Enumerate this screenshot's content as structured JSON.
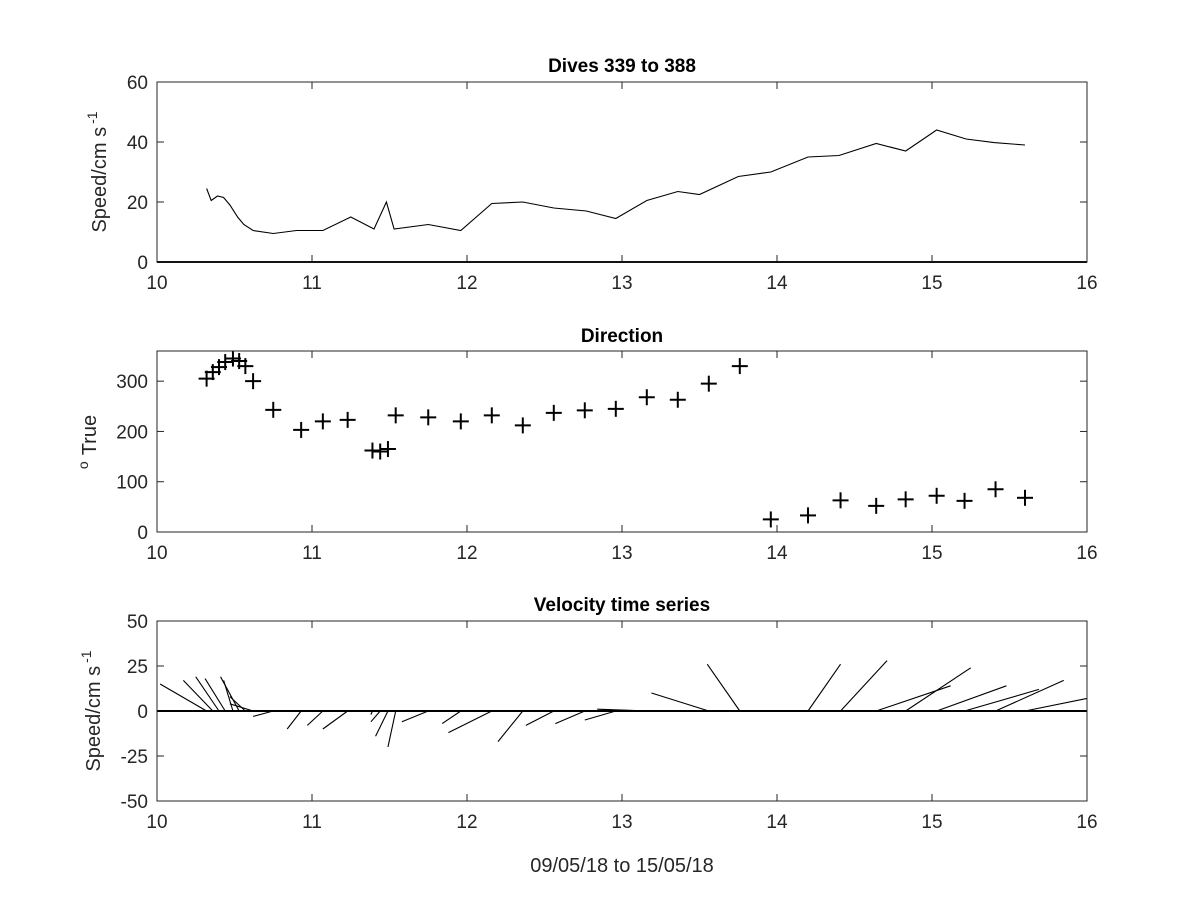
{
  "chart_data": [
    {
      "type": "line",
      "title": "Dives 339 to 388",
      "ylabel_main": "Speed/cm s",
      "ylabel_sup": "-1",
      "xlim": [
        10,
        16
      ],
      "ylim": [
        0,
        60
      ],
      "xticks": [
        "10",
        "11",
        "12",
        "13",
        "14",
        "15",
        "16"
      ],
      "yticks": [
        "0",
        "20",
        "40",
        "60"
      ],
      "x": [
        10.32,
        10.35,
        10.39,
        10.43,
        10.47,
        10.52,
        10.56,
        10.62,
        10.75,
        10.9,
        11.0,
        11.07,
        11.25,
        11.4,
        11.48,
        11.53,
        11.75,
        11.96,
        12.16,
        12.36,
        12.56,
        12.77,
        12.96,
        13.16,
        13.36,
        13.5,
        13.75,
        13.96,
        14.2,
        14.4,
        14.64,
        14.83,
        15.03,
        15.22,
        15.4,
        15.6
      ],
      "y": [
        24.5,
        20.5,
        22.0,
        21.5,
        19.0,
        15.0,
        12.5,
        10.5,
        9.5,
        10.5,
        10.5,
        10.5,
        15.0,
        11.0,
        20.0,
        11.0,
        12.5,
        10.5,
        19.5,
        20.0,
        18.0,
        17.0,
        14.5,
        20.5,
        23.5,
        22.5,
        28.5,
        30.0,
        35.0,
        35.5,
        39.5,
        37.0,
        44.0,
        41.0,
        39.8,
        39.0
      ]
    },
    {
      "type": "scatter",
      "title": "Direction",
      "ylabel_main": "True",
      "ylabel_sup": "o",
      "xlim": [
        10,
        16
      ],
      "ylim": [
        0,
        360
      ],
      "xticks": [
        "10",
        "11",
        "12",
        "13",
        "14",
        "15",
        "16"
      ],
      "yticks": [
        "0",
        "100",
        "200",
        "300"
      ],
      "x": [
        10.32,
        10.36,
        10.4,
        10.44,
        10.49,
        10.53,
        10.57,
        10.62,
        10.75,
        10.93,
        11.07,
        11.23,
        11.39,
        11.44,
        11.49,
        11.54,
        11.75,
        11.96,
        12.16,
        12.36,
        12.56,
        12.76,
        12.96,
        13.16,
        13.36,
        13.56,
        13.76,
        13.96,
        14.2,
        14.41,
        14.64,
        14.83,
        15.03,
        15.21,
        15.41,
        15.6
      ],
      "y": [
        305,
        318,
        328,
        338,
        345,
        340,
        330,
        300,
        243,
        203,
        220,
        223,
        162,
        160,
        165,
        232,
        228,
        220,
        232,
        212,
        237,
        242,
        245,
        268,
        263,
        295,
        330,
        25,
        33,
        63,
        52,
        65,
        72,
        62,
        85,
        68
      ]
    },
    {
      "type": "stick",
      "title": "Velocity time series",
      "ylabel_main": "Speed/cm s",
      "ylabel_sup": "-1",
      "xlabel": "09/05/18 to 15/05/18",
      "xlim": [
        10,
        16
      ],
      "ylim": [
        -50,
        50
      ],
      "xticks": [
        "10",
        "11",
        "12",
        "13",
        "14",
        "15",
        "16"
      ],
      "yticks": [
        "-50",
        "-25",
        "0",
        "25",
        "50"
      ],
      "vectors": [
        {
          "x0": 10.32,
          "x1": 10.02,
          "y1": 15
        },
        {
          "x0": 10.36,
          "x1": 10.17,
          "y1": 17
        },
        {
          "x0": 10.4,
          "x1": 10.25,
          "y1": 19
        },
        {
          "x0": 10.44,
          "x1": 10.31,
          "y1": 18
        },
        {
          "x0": 10.49,
          "x1": 10.43,
          "y1": 17
        },
        {
          "x0": 10.53,
          "x1": 10.41,
          "y1": 19
        },
        {
          "x0": 10.57,
          "x1": 10.47,
          "y1": 8
        },
        {
          "x0": 10.62,
          "x1": 10.47,
          "y1": 4
        },
        {
          "x0": 10.75,
          "x1": 10.62,
          "y1": -3
        },
        {
          "x0": 10.93,
          "x1": 10.84,
          "y1": -10
        },
        {
          "x0": 11.07,
          "x1": 10.97,
          "y1": -8
        },
        {
          "x0": 11.23,
          "x1": 11.07,
          "y1": -10
        },
        {
          "x0": 11.39,
          "x1": 11.38,
          "y1": -2
        },
        {
          "x0": 11.44,
          "x1": 11.38,
          "y1": -6
        },
        {
          "x0": 11.49,
          "x1": 11.41,
          "y1": -14
        },
        {
          "x0": 11.54,
          "x1": 11.49,
          "y1": -20
        },
        {
          "x0": 11.75,
          "x1": 11.58,
          "y1": -6
        },
        {
          "x0": 11.96,
          "x1": 11.84,
          "y1": -7
        },
        {
          "x0": 12.16,
          "x1": 11.88,
          "y1": -12
        },
        {
          "x0": 12.36,
          "x1": 12.2,
          "y1": -17
        },
        {
          "x0": 12.56,
          "x1": 12.38,
          "y1": -8
        },
        {
          "x0": 12.76,
          "x1": 12.57,
          "y1": -7
        },
        {
          "x0": 12.96,
          "x1": 12.76,
          "y1": -5
        },
        {
          "x0": 13.16,
          "x1": 12.84,
          "y1": 1
        },
        {
          "x0": 13.36,
          "x1": 12.94,
          "y1": 0
        },
        {
          "x0": 13.56,
          "x1": 13.19,
          "y1": 10
        },
        {
          "x0": 13.76,
          "x1": 13.55,
          "y1": 26
        },
        {
          "x0": 13.96,
          "x1": 13.97,
          "y1": 0
        },
        {
          "x0": 14.2,
          "x1": 14.41,
          "y1": 26
        },
        {
          "x0": 14.41,
          "x1": 14.71,
          "y1": 28
        },
        {
          "x0": 14.64,
          "x1": 15.12,
          "y1": 14
        },
        {
          "x0": 14.83,
          "x1": 15.25,
          "y1": 24
        },
        {
          "x0": 15.03,
          "x1": 15.48,
          "y1": 14
        },
        {
          "x0": 15.21,
          "x1": 15.69,
          "y1": 12
        },
        {
          "x0": 15.41,
          "x1": 15.85,
          "y1": 17
        },
        {
          "x0": 15.6,
          "x1": 16.0,
          "y1": 7
        }
      ]
    }
  ]
}
